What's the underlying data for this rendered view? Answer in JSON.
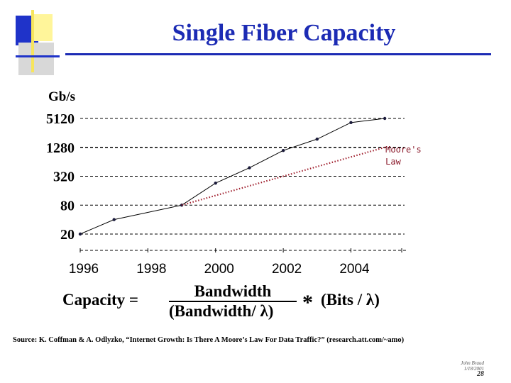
{
  "slide": {
    "title": "Single Fiber Capacity",
    "source": "Source: K. Coffman & A. Odlyzko, “Internet Growth: Is There A Moore’s Law For Data Traffic?” (research.att.com/~amo)",
    "author": "John Braud",
    "date": "1/18/2001",
    "page": "28"
  },
  "formula": {
    "lhs": "Capacity =",
    "numerator": "Bandwidth",
    "denominator": "(Bandwidth/ λ)",
    "operator": "*",
    "tail": "(Bits / λ)"
  },
  "colors": {
    "title": "#1c2bb4",
    "fiber_line": "#000000",
    "moores_law": "#a0202e",
    "decor_blue": "#1f33c9",
    "decor_yellow": "#fff59a"
  },
  "chart_data": {
    "type": "line",
    "ylabel": "Gb/s",
    "yscale": "log2",
    "ylim": [
      20,
      5120
    ],
    "xlim": [
      1996,
      2005.5
    ],
    "ytick_labels": [
      "5120",
      "1280",
      "320",
      "80",
      "20"
    ],
    "ytick_values": [
      5120,
      1280,
      320,
      80,
      20
    ],
    "xtick_labels": [
      "1996",
      "1998",
      "2000",
      "2002",
      "2004"
    ],
    "xtick_values": [
      1996,
      1998,
      2000,
      2002,
      2004
    ],
    "grid": "horizontal dashed",
    "series": [
      {
        "name": "",
        "style": "solid",
        "x": [
          1996,
          1997,
          1999,
          2000,
          2001,
          2002,
          2003,
          2004,
          2005
        ],
        "y": [
          20,
          40,
          80,
          230,
          480,
          1100,
          1900,
          4200,
          5120
        ]
      },
      {
        "name": "Moore's Law",
        "style": "dotted",
        "x": [
          1999,
          2005
        ],
        "y": [
          80,
          1280
        ]
      }
    ],
    "annotations": [
      {
        "text_lines": [
          "Moore's",
          "Law"
        ],
        "x": 2005,
        "y": 1280
      }
    ]
  }
}
